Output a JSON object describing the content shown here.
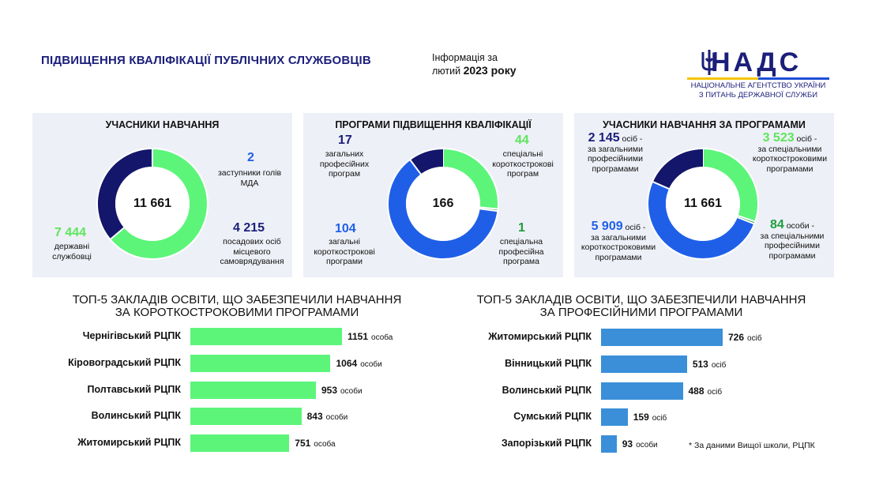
{
  "header": {
    "title": "ПІДВИЩЕННЯ КВАЛІФІКАЦІЇ ПУБЛІЧНИХ СЛУЖБОВЦІВ",
    "info_line1": "Інформація за",
    "info_month": "лютий",
    "info_year": "2023 року"
  },
  "logo": {
    "name": "НАДС",
    "subtitle1": "НАЦІОНАЛЬНЕ АГЕНТСТВО УКРАЇНИ",
    "subtitle2": "З ПИТАНЬ ДЕРЖАВНОЇ СЛУЖБИ",
    "icon": "trident-icon"
  },
  "colors": {
    "green": "#5cf57a",
    "navy": "#14166b",
    "blue": "#1f5fe8",
    "bar_blue": "#3a8fd8"
  },
  "chart_data": [
    {
      "type": "pie",
      "title": "УЧАСНИКИ НАВЧАННЯ",
      "center_label": "11 661",
      "slices": [
        {
          "value_label": "7 444",
          "value": 7444,
          "label": "державні службовці",
          "color": "#5cf57a"
        },
        {
          "value_label": "4 215",
          "value": 4215,
          "label": "посадових осіб місцевого самоврядування",
          "color": "#14166b"
        },
        {
          "value_label": "2",
          "value": 2,
          "label": "заступники голів МДА",
          "color": "#1f5fe8"
        }
      ]
    },
    {
      "type": "pie",
      "title": "ПРОГРАМИ ПІДВИЩЕННЯ КВАЛІФІКАЦІЇ",
      "center_label": "166",
      "slices": [
        {
          "value_label": "44",
          "value": 44,
          "label": "спеціальні короткострокові програм",
          "color": "#5cf57a"
        },
        {
          "value_label": "1",
          "value": 1,
          "label": "спеціальна професійна програма",
          "color": "#1e9e3e"
        },
        {
          "value_label": "104",
          "value": 104,
          "label": "загальні короткострокові програми",
          "color": "#1f5fe8"
        },
        {
          "value_label": "17",
          "value": 17,
          "label": "загальних професійних програм",
          "color": "#14166b"
        }
      ]
    },
    {
      "type": "pie",
      "title": "УЧАСНИКИ НАВЧАННЯ ЗА ПРОГРАМАМИ",
      "center_label": "11 661",
      "slices": [
        {
          "value_label": "3 523",
          "value": 3523,
          "unit": "осіб -",
          "label": "за спеціальними короткостроковими програмами",
          "color": "#5cf57a"
        },
        {
          "value_label": "84",
          "value": 84,
          "unit": "особи -",
          "label": "за спеціальними професійними програмами",
          "color": "#1e9e3e"
        },
        {
          "value_label": "5 909",
          "value": 5909,
          "unit": "осіб -",
          "label": "за загальними короткостроковими програмами",
          "color": "#1f5fe8"
        },
        {
          "value_label": "2 145",
          "value": 2145,
          "unit": "осіб -",
          "label": "за загальними професійними програмами",
          "color": "#14166b"
        }
      ]
    },
    {
      "type": "bar",
      "title": "ТОП-5 ЗАКЛАДІВ ОСВІТИ, ЩО ЗАБЕЗПЕЧИЛИ НАВЧАННЯ ЗА КОРОТКОСТРОКОВИМИ ПРОГРАМАМИ",
      "title_line1": "ТОП-5 ЗАКЛАДІВ ОСВІТИ, ЩО ЗАБЕЗПЕЧИЛИ НАВЧАННЯ",
      "title_line2": "ЗА КОРОТКОСТРОКОВИМИ ПРОГРАМАМИ",
      "color": "#5cf57a",
      "categories": [
        "Чернігівський РЦПК",
        "Кіровоградський РЦПК",
        "Полтавський РЦПК",
        "Волинський РЦПК",
        "Житомирський РЦПК"
      ],
      "values": [
        1151,
        1064,
        953,
        843,
        751
      ],
      "units": [
        "особа",
        "особи",
        "особи",
        "особи",
        "особа"
      ]
    },
    {
      "type": "bar",
      "title": "ТОП-5 ЗАКЛАДІВ ОСВІТИ, ЩО ЗАБЕЗПЕЧИЛИ НАВЧАННЯ ЗА ПРОФЕСІЙНИМИ ПРОГРАМАМИ",
      "title_line1": "ТОП-5 ЗАКЛАДІВ ОСВІТИ, ЩО ЗАБЕЗПЕЧИЛИ НАВЧАННЯ",
      "title_line2": "ЗА ПРОФЕСІЙНИМИ ПРОГРАМАМИ",
      "color": "#3a8fd8",
      "categories": [
        "Житомирський РЦПК",
        "Вінницький РЦПК",
        "Волинський РЦПК",
        "Сумський РЦПК",
        "Запорізький РЦПК"
      ],
      "values": [
        726,
        513,
        488,
        159,
        93
      ],
      "units": [
        "осіб",
        "осіб",
        "осіб",
        "осіб",
        "особи"
      ]
    }
  ],
  "footnote": "* За даними Вищої школи, РЦПК"
}
